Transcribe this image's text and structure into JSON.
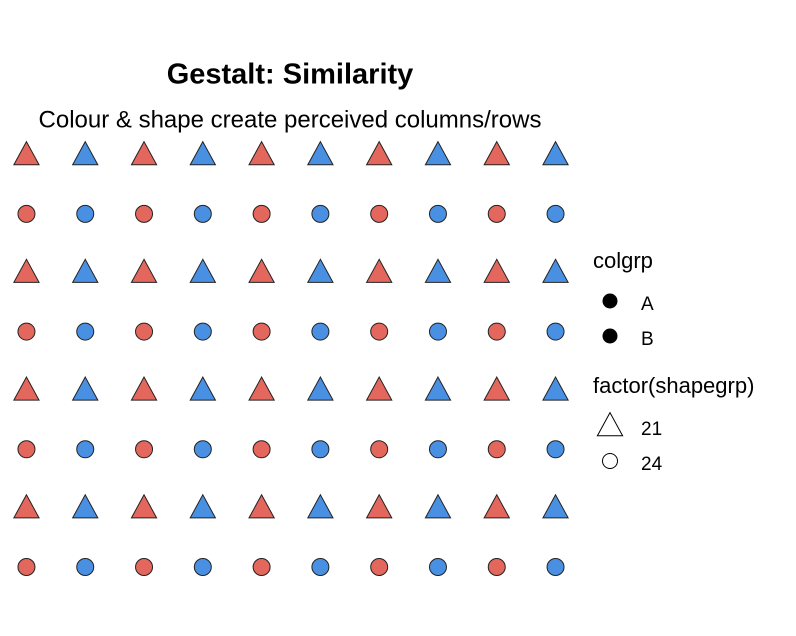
{
  "chart_data": {
    "type": "scatter",
    "title": "Gestalt: Similarity",
    "subtitle": "Colour & shape create perceived columns/rows",
    "xlim": [
      0.55,
      10.45
    ],
    "ylim": [
      0.65,
      8.35
    ],
    "x": [
      1,
      2,
      3,
      4,
      5,
      6,
      7,
      8,
      9,
      10,
      1,
      2,
      3,
      4,
      5,
      6,
      7,
      8,
      9,
      10,
      1,
      2,
      3,
      4,
      5,
      6,
      7,
      8,
      9,
      10,
      1,
      2,
      3,
      4,
      5,
      6,
      7,
      8,
      9,
      10,
      1,
      2,
      3,
      4,
      5,
      6,
      7,
      8,
      9,
      10,
      1,
      2,
      3,
      4,
      5,
      6,
      7,
      8,
      9,
      10,
      1,
      2,
      3,
      4,
      5,
      6,
      7,
      8,
      9,
      10,
      1,
      2,
      3,
      4,
      5,
      6,
      7,
      8,
      9,
      10
    ],
    "y": [
      8,
      8,
      8,
      8,
      8,
      8,
      8,
      8,
      8,
      8,
      7,
      7,
      7,
      7,
      7,
      7,
      7,
      7,
      7,
      7,
      6,
      6,
      6,
      6,
      6,
      6,
      6,
      6,
      6,
      6,
      5,
      5,
      5,
      5,
      5,
      5,
      5,
      5,
      5,
      5,
      4,
      4,
      4,
      4,
      4,
      4,
      4,
      4,
      4,
      4,
      3,
      3,
      3,
      3,
      3,
      3,
      3,
      3,
      3,
      3,
      2,
      2,
      2,
      2,
      2,
      2,
      2,
      2,
      2,
      2,
      1,
      1,
      1,
      1,
      1,
      1,
      1,
      1,
      1,
      1
    ],
    "colgrp": [
      "A",
      "B",
      "A",
      "B",
      "A",
      "B",
      "A",
      "B",
      "A",
      "B",
      "A",
      "B",
      "A",
      "B",
      "A",
      "B",
      "A",
      "B",
      "A",
      "B",
      "A",
      "B",
      "A",
      "B",
      "A",
      "B",
      "A",
      "B",
      "A",
      "B",
      "A",
      "B",
      "A",
      "B",
      "A",
      "B",
      "A",
      "B",
      "A",
      "B",
      "A",
      "B",
      "A",
      "B",
      "A",
      "B",
      "A",
      "B",
      "A",
      "B",
      "A",
      "B",
      "A",
      "B",
      "A",
      "B",
      "A",
      "B",
      "A",
      "B",
      "A",
      "B",
      "A",
      "B",
      "A",
      "B",
      "A",
      "B",
      "A",
      "B",
      "A",
      "B",
      "A",
      "B",
      "A",
      "B",
      "A",
      "B",
      "A",
      "B"
    ],
    "shapegrp": [
      "21",
      "21",
      "21",
      "21",
      "21",
      "21",
      "21",
      "21",
      "21",
      "21",
      "24",
      "24",
      "24",
      "24",
      "24",
      "24",
      "24",
      "24",
      "24",
      "24",
      "21",
      "21",
      "21",
      "21",
      "21",
      "21",
      "21",
      "21",
      "21",
      "21",
      "24",
      "24",
      "24",
      "24",
      "24",
      "24",
      "24",
      "24",
      "24",
      "24",
      "21",
      "21",
      "21",
      "21",
      "21",
      "21",
      "21",
      "21",
      "21",
      "21",
      "24",
      "24",
      "24",
      "24",
      "24",
      "24",
      "24",
      "24",
      "24",
      "24",
      "21",
      "21",
      "21",
      "21",
      "21",
      "21",
      "21",
      "21",
      "21",
      "21",
      "24",
      "24",
      "24",
      "24",
      "24",
      "24",
      "24",
      "24",
      "24",
      "24"
    ],
    "legends": [
      {
        "title": "colgrp",
        "entries": [
          {
            "label": "A",
            "color": "#e3675c"
          },
          {
            "label": "B",
            "color": "#4a90e2"
          }
        ]
      },
      {
        "title": "factor(shapegrp)",
        "entries": [
          {
            "label": "21",
            "shape": "triangle"
          },
          {
            "label": "24",
            "shape": "circle"
          }
        ]
      }
    ]
  }
}
